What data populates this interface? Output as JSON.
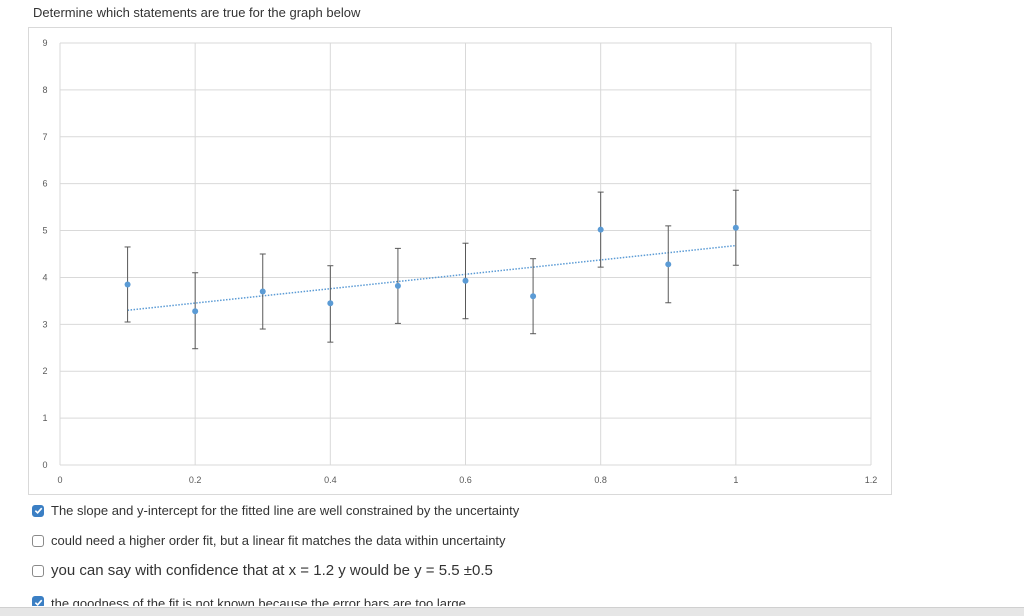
{
  "question": "Determine which statements are true for the graph below",
  "chart_data": {
    "type": "scatter",
    "x_ticks": [
      "0",
      "0.2",
      "0.4",
      "0.6",
      "0.8",
      "1",
      "1.2"
    ],
    "y_ticks": [
      "0",
      "1",
      "2",
      "3",
      "4",
      "5",
      "6",
      "7",
      "8",
      "9"
    ],
    "xlim": [
      0,
      1.2
    ],
    "ylim": [
      0,
      9
    ],
    "grid": true,
    "points": [
      {
        "x": 0.1,
        "y": 3.85,
        "lo": 3.05,
        "hi": 4.65
      },
      {
        "x": 0.2,
        "y": 3.28,
        "lo": 2.48,
        "hi": 4.1
      },
      {
        "x": 0.3,
        "y": 3.7,
        "lo": 2.9,
        "hi": 4.5
      },
      {
        "x": 0.4,
        "y": 3.45,
        "lo": 2.62,
        "hi": 4.25
      },
      {
        "x": 0.5,
        "y": 3.82,
        "lo": 3.02,
        "hi": 4.62
      },
      {
        "x": 0.6,
        "y": 3.93,
        "lo": 3.12,
        "hi": 4.73
      },
      {
        "x": 0.7,
        "y": 3.6,
        "lo": 2.8,
        "hi": 4.4
      },
      {
        "x": 0.8,
        "y": 5.02,
        "lo": 4.22,
        "hi": 5.82
      },
      {
        "x": 0.9,
        "y": 4.28,
        "lo": 3.46,
        "hi": 5.1
      },
      {
        "x": 1.0,
        "y": 5.06,
        "lo": 4.26,
        "hi": 5.86
      }
    ],
    "trendline": {
      "type": "linear",
      "x_start": 0.1,
      "y_start": 3.3,
      "x_end": 1.0,
      "y_end": 4.68
    },
    "colors": {
      "point": "#5b9bd5",
      "trendline": "#5b9bd5",
      "errorbar": "#595959",
      "grid": "#d9d9d9"
    }
  },
  "options": [
    {
      "label": "The slope and y-intercept for the fitted line are well constrained by the uncertainty",
      "checked": true
    },
    {
      "label": "could need a higher order fit, but a linear fit matches the data within uncertainty",
      "checked": false
    },
    {
      "label": "you can say with confidence that at x = 1.2 y would be y = 5.5 ±0.5",
      "checked": false
    },
    {
      "label": "the goodness of the fit is not known because the error bars are too large",
      "checked": true
    }
  ]
}
